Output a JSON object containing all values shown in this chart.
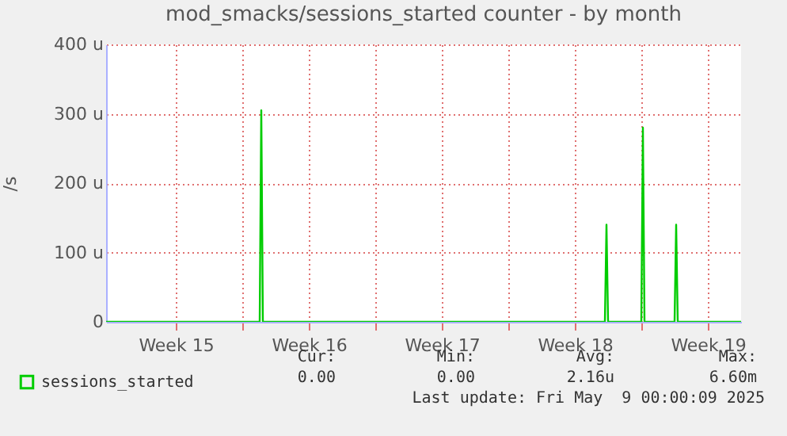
{
  "chart_data": {
    "type": "line",
    "title": "mod_smacks/sessions_started counter - by month",
    "ylabel": "/s",
    "xlim": [
      "2025-04-06T20:00",
      "2025-05-10T06:00"
    ],
    "xticks": [
      {
        "value": "2025-04-10T12:00",
        "label": "Week 15"
      },
      {
        "value": "2025-04-14T00:00",
        "label": null
      },
      {
        "value": "2025-04-17T12:00",
        "label": "Week 16"
      },
      {
        "value": "2025-04-21T00:00",
        "label": null
      },
      {
        "value": "2025-04-24T12:00",
        "label": "Week 17"
      },
      {
        "value": "2025-04-28T00:00",
        "label": null
      },
      {
        "value": "2025-05-01T12:00",
        "label": "Week 18"
      },
      {
        "value": "2025-05-05T00:00",
        "label": null
      },
      {
        "value": "2025-05-08T12:00",
        "label": "Week 19"
      }
    ],
    "ylim": [
      0,
      400
    ],
    "yticks": [
      0,
      {
        "value": 100,
        "label": "100 u"
      },
      {
        "value": 200,
        "label": "200 u"
      },
      {
        "value": 300,
        "label": "300 u"
      },
      {
        "value": 400,
        "label": "400 u"
      }
    ],
    "grid": true,
    "legend": "bottom left",
    "series": [
      {
        "name": "sessions_started",
        "color": "#00cc00",
        "x": [
          "2025-04-06T20:00",
          "2025-04-14T22:00",
          "2025-04-15T00:00",
          "2025-04-15T02:00",
          "2025-05-03T02:00",
          "2025-05-03T04:00",
          "2025-05-03T06:00",
          "2025-05-05T00:00",
          "2025-05-05T02:00",
          "2025-05-05T04:00",
          "2025-05-06T18:00",
          "2025-05-06T20:00",
          "2025-05-06T22:00",
          "2025-05-10T06:00"
        ],
        "values": [
          0,
          0,
          305,
          0,
          0,
          140,
          0,
          0,
          280,
          0,
          0,
          140,
          0,
          0
        ]
      }
    ],
    "annotations": [
      "Cur:",
      "0.00",
      "Min:",
      "0.00",
      "Avg:",
      "2.16u",
      "Max:",
      "6.60m",
      "Last update: Fri May  9 00:00:09 2025"
    ]
  }
}
